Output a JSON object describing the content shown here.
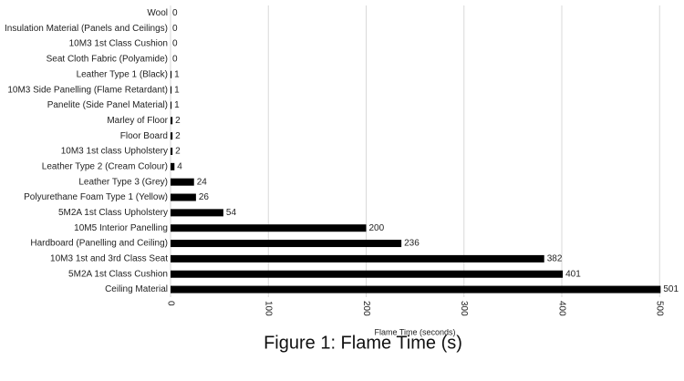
{
  "chart_data": {
    "type": "barh",
    "categories": [
      "Wool",
      "Insulation Material (Panels and Ceilings)",
      "10M3 1st Class Cushion",
      "Seat Cloth Fabric (Polyamide)",
      "Leather Type 1 (Black)",
      "10M3 Side Panelling (Flame Retardant)",
      "Panelite (Side Panel Material)",
      "Marley of Floor",
      "Floor Board",
      "10M3 1st class Upholstery",
      "Leather Type 2 (Cream Colour)",
      "Leather Type 3 (Grey)",
      "Polyurethane Foam Type 1 (Yellow)",
      "5M2A 1st Class Upholstery",
      "10M5 Interior Panelling",
      "Hardboard (Panelling and Ceiling)",
      "10M3 1st and 3rd Class Seat",
      "5M2A 1st Class Cushion",
      "Ceiling Material"
    ],
    "values": [
      0,
      0,
      0,
      0,
      1,
      1,
      1,
      2,
      2,
      2,
      4,
      24,
      26,
      54,
      200,
      236,
      382,
      401,
      501
    ],
    "color": "#000000",
    "xlim": [
      0,
      510
    ],
    "xticks": [
      0,
      100,
      200,
      300,
      400,
      500
    ],
    "grid": true,
    "xlabel": "Flame Time (seconds)",
    "caption": "Figure 1: Flame Time (s)"
  }
}
